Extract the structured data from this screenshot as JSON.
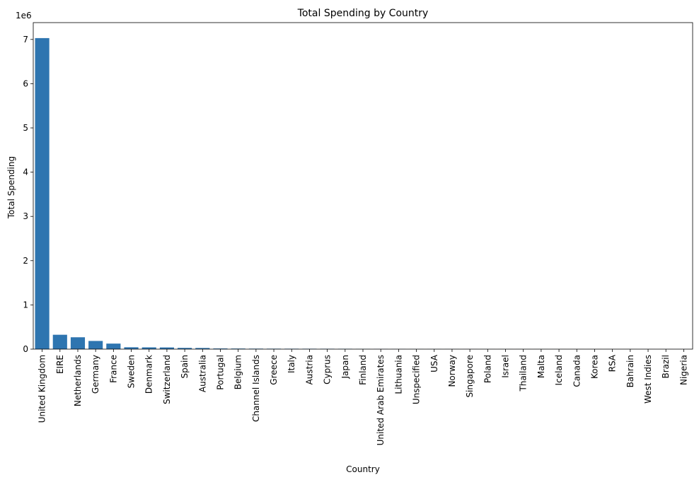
{
  "chart_data": {
    "type": "bar",
    "title": "Total Spending by Country",
    "xlabel": "Country",
    "ylabel": "Total Spending",
    "offset_label": "1e6",
    "categories": [
      "United Kingdom",
      "EIRE",
      "Netherlands",
      "Germany",
      "France",
      "Sweden",
      "Denmark",
      "Switzerland",
      "Spain",
      "Australia",
      "Portugal",
      "Belgium",
      "Channel Islands",
      "Greece",
      "Italy",
      "Austria",
      "Cyprus",
      "Japan",
      "Finland",
      "United Arab Emirates",
      "Lithuania",
      "Unspecified",
      "USA",
      "Norway",
      "Singapore",
      "Poland",
      "Israel",
      "Thailand",
      "Malta",
      "Iceland",
      "Canada",
      "Korea",
      "RSA",
      "Bahrain",
      "West Indies",
      "Brazil",
      "Nigeria"
    ],
    "values": [
      7030000,
      325000,
      268000,
      185000,
      125000,
      42000,
      40000,
      38000,
      28000,
      26000,
      15000,
      13000,
      11000,
      10000,
      9500,
      9000,
      8500,
      8000,
      4500,
      3500,
      2500,
      2000,
      1800,
      1600,
      1500,
      1300,
      1200,
      1100,
      900,
      800,
      700,
      600,
      500,
      450,
      350,
      300,
      250
    ],
    "yticks": [
      0,
      1,
      2,
      3,
      4,
      5,
      6,
      7
    ],
    "ylim": [
      0,
      7380000
    ],
    "color": "#2e75b0",
    "legend": "none",
    "grid": false
  }
}
